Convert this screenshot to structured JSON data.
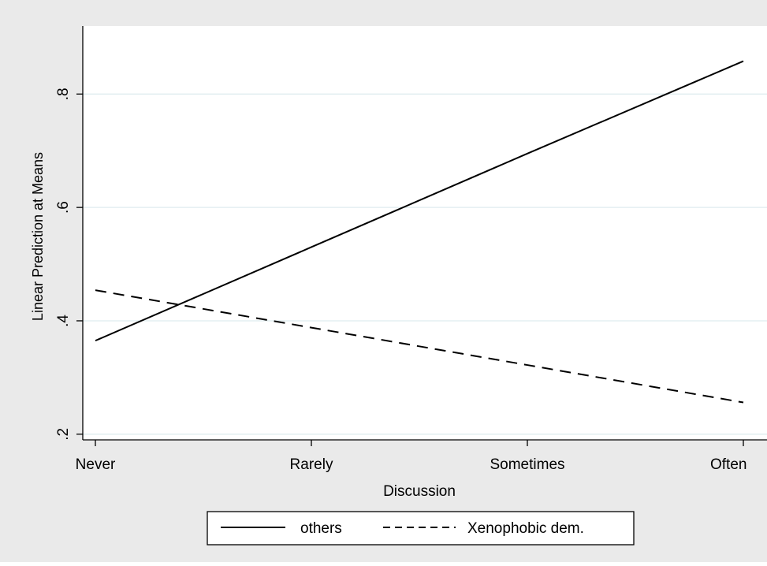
{
  "chart_data": {
    "type": "line",
    "title": "",
    "xlabel": "Discussion",
    "ylabel": "Linear Prediction at Means",
    "categories": [
      "Never",
      "Rarely",
      "Sometimes",
      "Often"
    ],
    "yticks": [
      ".2",
      ".4",
      ".6",
      ".8"
    ],
    "ytick_values": [
      0.2,
      0.4,
      0.6,
      0.8
    ],
    "ylim": [
      0.19,
      0.92
    ],
    "grid": true,
    "legend_position": "bottom",
    "series": [
      {
        "name": "others",
        "style": "solid",
        "color": "#000000",
        "values": [
          0.365,
          0.53,
          0.695,
          0.858
        ]
      },
      {
        "name": "Xenophobic dem.",
        "style": "dashed",
        "color": "#000000",
        "values": [
          0.454,
          0.388,
          0.322,
          0.256
        ]
      }
    ],
    "colors": {
      "background_outer": "#eaeaea",
      "plot_background": "#ffffff",
      "grid": "#dfecef",
      "line": "#000000"
    }
  }
}
